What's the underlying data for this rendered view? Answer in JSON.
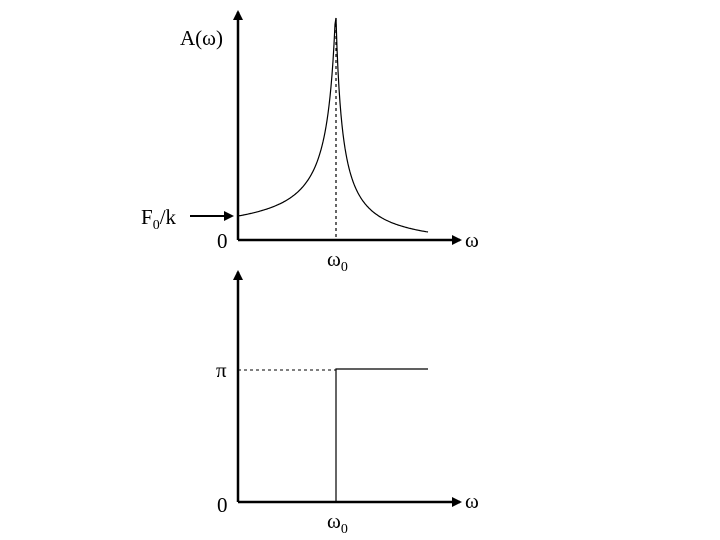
{
  "amplitude_plot": {
    "y_label_main": "A(ω)",
    "x_label": "ω",
    "origin_label": "0",
    "static_label_main": "F",
    "static_label_sub": "0",
    "static_label_tail": "/k",
    "resonance_label_main": "ω",
    "resonance_label_sub": "0"
  },
  "phase_plot": {
    "x_label": "ω",
    "origin_label": "0",
    "pi_label": "π",
    "resonance_label_main": "ω",
    "resonance_label_sub": "0"
  },
  "colors": {
    "axes": "#000000",
    "curve": "#000000"
  }
}
